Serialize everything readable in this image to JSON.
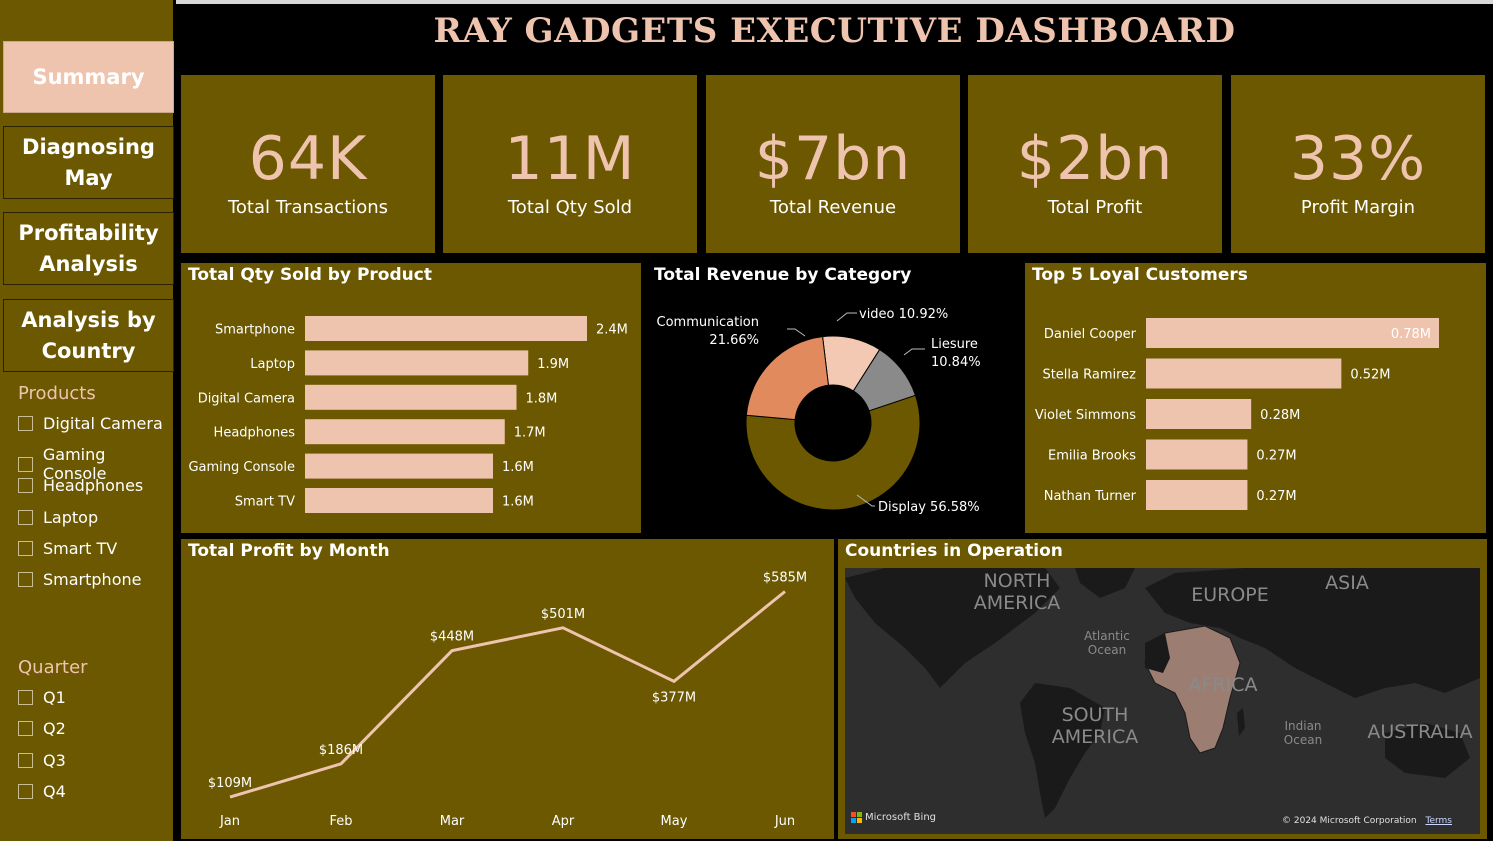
{
  "title": "RAY GADGETS EXECUTIVE DASHBOARD",
  "nav": {
    "summary": "Summary",
    "diagnosing_line1": "Diagnosing",
    "diagnosing_line2": "May",
    "profitability_line1": "Profitability",
    "profitability_line2": "Analysis",
    "country_line1": "Analysis by",
    "country_line2": "Country"
  },
  "products_slicer": {
    "title": "Products",
    "items": [
      "Digital Camera",
      "Gaming Console",
      "Headphones",
      "Laptop",
      "Smart TV",
      "Smartphone"
    ]
  },
  "quarter_slicer": {
    "title": "Quarter",
    "items": [
      "Q1",
      "Q2",
      "Q3",
      "Q4"
    ]
  },
  "kpis": [
    {
      "value": "64K",
      "label": "Total Transactions"
    },
    {
      "value": "11M",
      "label": "Total Qty Sold"
    },
    {
      "value": "$7bn",
      "label": "Total Revenue"
    },
    {
      "value": "$2bn",
      "label": "Total Profit"
    },
    {
      "value": "33%",
      "label": "Profit Margin"
    }
  ],
  "qty_by_product": {
    "title": "Total Qty Sold by Product",
    "categories": [
      "Smartphone",
      "Laptop",
      "Digital Camera",
      "Headphones",
      "Gaming Console",
      "Smart TV"
    ],
    "values": [
      2.4,
      1.9,
      1.8,
      1.7,
      1.6,
      1.6
    ],
    "labels": [
      "2.4M",
      "1.9M",
      "1.8M",
      "1.7M",
      "1.6M",
      "1.6M"
    ]
  },
  "revenue_by_category": {
    "title": "Total Revenue by Category",
    "slices": [
      {
        "name": "Display",
        "value": 56.58,
        "label": "56.58%",
        "color": "#6b5800"
      },
      {
        "name": "Communication",
        "value": 21.66,
        "label": "21.66%",
        "color": "#e08a5e"
      },
      {
        "name": "video",
        "value": 10.92,
        "label": "10.92%",
        "color": "#f3c9b3"
      },
      {
        "name": "Liesure",
        "value": 10.84,
        "label": "10.84%",
        "color": "#8a8a8a"
      }
    ]
  },
  "loyal_customers": {
    "title": "Top 5 Loyal Customers",
    "categories": [
      "Daniel Cooper",
      "Stella Ramirez",
      "Violet Simmons",
      "Emilia Brooks",
      "Nathan Turner"
    ],
    "values": [
      0.78,
      0.52,
      0.28,
      0.27,
      0.27
    ],
    "labels": [
      "0.78M",
      "0.52M",
      "0.28M",
      "0.27M",
      "0.27M"
    ]
  },
  "profit_by_month": {
    "title": "Total Profit by Month",
    "categories": [
      "Jan",
      "Feb",
      "Mar",
      "Apr",
      "May",
      "Jun"
    ],
    "values": [
      109,
      186,
      448,
      501,
      377,
      585
    ],
    "labels": [
      "$109M",
      "$186M",
      "$448M",
      "$501M",
      "$377M",
      "$585M"
    ]
  },
  "map": {
    "title": "Countries in Operation",
    "continents": {
      "north_america_1": "NORTH",
      "north_america_2": "AMERICA",
      "europe": "EUROPE",
      "asia": "ASIA",
      "africa": "AFRICA",
      "south_america_1": "SOUTH",
      "south_america_2": "AMERICA",
      "australia": "AUSTRALIA"
    },
    "oceans": {
      "atlantic_1": "Atlantic",
      "atlantic_2": "Ocean",
      "indian_1": "Indian",
      "indian_2": "Ocean"
    },
    "attribution": "Microsoft Bing",
    "copyright": "© 2024 Microsoft Corporation",
    "terms": "Terms"
  },
  "colors": {
    "panel": "#6b5800",
    "accent": "#efc4ae",
    "background": "#000000"
  }
}
